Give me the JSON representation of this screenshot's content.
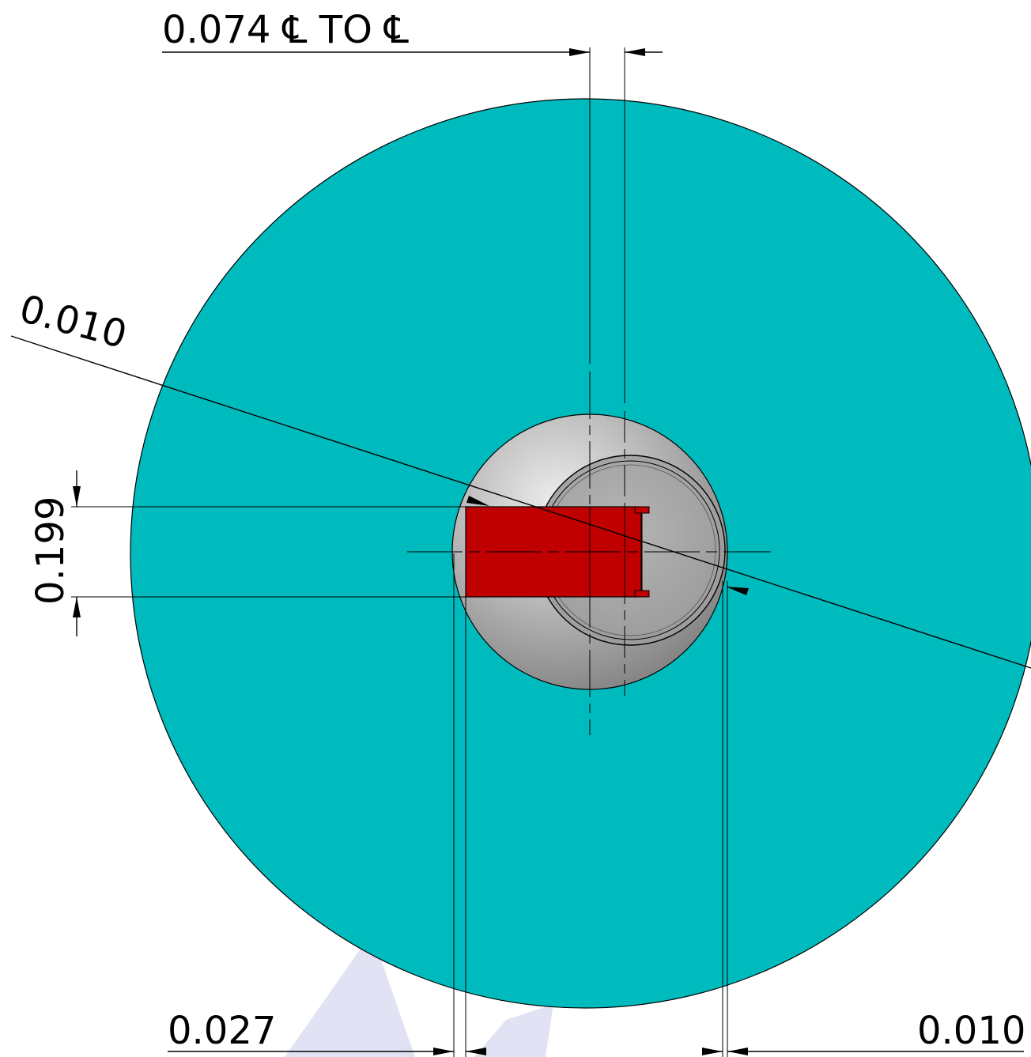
{
  "drawing": {
    "colors": {
      "background": "#ffffff",
      "plate": "#00BBBE",
      "hub_light": "#C9C9C9",
      "hub_dark": "#8E8E8E",
      "part_red": "#C00000",
      "lines": "#000000",
      "watermark": "#C8CCEB"
    },
    "dimensions": {
      "top": "0.074 ℄ TO ℄",
      "diagonal": "0.010",
      "vertical": "0.199",
      "bottom_left": "0.027",
      "bottom_right": "0.010"
    }
  }
}
